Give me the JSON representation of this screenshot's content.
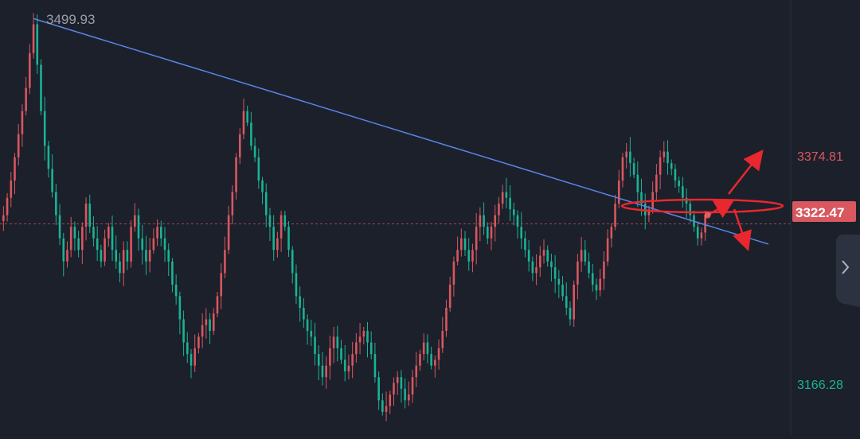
{
  "chart_data": {
    "type": "candlestick",
    "price_labels": {
      "high": "3499.93",
      "upper": "3374.81",
      "current": "3322.47",
      "lower": "3166.28"
    },
    "ylim": [
      3140,
      3516
    ],
    "colors": {
      "background": "#1b202b",
      "up": "#d9575f",
      "down": "#1bb394",
      "trendline": "#5b86e5",
      "annotation": "#e8282e",
      "current_price_badge": "#d9575f",
      "upper_label": "#d9575f",
      "lower_label": "#1bb394",
      "high_label": "#9aa0ab",
      "grid": "none"
    },
    "trendline": {
      "from_price": 3499.93,
      "to_price": 3305
    },
    "annotations": {
      "ellipse_price": 3338,
      "up_arrow_target": 3380,
      "down_arrow_target": 3307,
      "current_price_line": 3322.47
    },
    "closes": [
      3330,
      3345,
      3360,
      3380,
      3400,
      3420,
      3440,
      3470,
      3495,
      3460,
      3420,
      3390,
      3370,
      3350,
      3330,
      3310,
      3290,
      3300,
      3320,
      3310,
      3300,
      3320,
      3340,
      3320,
      3310,
      3300,
      3290,
      3310,
      3320,
      3300,
      3290,
      3280,
      3300,
      3290,
      3320,
      3330,
      3310,
      3300,
      3290,
      3300,
      3310,
      3320,
      3310,
      3300,
      3290,
      3270,
      3260,
      3240,
      3220,
      3210,
      3200,
      3215,
      3225,
      3235,
      3240,
      3230,
      3245,
      3260,
      3280,
      3300,
      3330,
      3350,
      3380,
      3400,
      3420,
      3410,
      3390,
      3380,
      3360,
      3350,
      3330,
      3320,
      3300,
      3310,
      3330,
      3320,
      3300,
      3280,
      3260,
      3250,
      3240,
      3230,
      3225,
      3210,
      3200,
      3190,
      3200,
      3215,
      3225,
      3215,
      3205,
      3195,
      3200,
      3210,
      3220,
      3225,
      3230,
      3220,
      3210,
      3190,
      3170,
      3160,
      3165,
      3175,
      3185,
      3190,
      3180,
      3170,
      3175,
      3190,
      3200,
      3210,
      3220,
      3210,
      3200,
      3205,
      3215,
      3230,
      3250,
      3270,
      3290,
      3300,
      3310,
      3300,
      3290,
      3300,
      3320,
      3330,
      3320,
      3310,
      3320,
      3330,
      3340,
      3350,
      3345,
      3335,
      3330,
      3320,
      3310,
      3300,
      3290,
      3280,
      3285,
      3295,
      3300,
      3290,
      3285,
      3275,
      3270,
      3260,
      3250,
      3240,
      3270,
      3290,
      3300,
      3290,
      3280,
      3270,
      3265,
      3275,
      3290,
      3310,
      3320,
      3340,
      3360,
      3380,
      3385,
      3375,
      3365,
      3350,
      3340,
      3330,
      3335,
      3350,
      3365,
      3380,
      3385,
      3375,
      3370,
      3360,
      3355,
      3345,
      3340,
      3330,
      3320,
      3310,
      3315,
      3330
    ]
  }
}
